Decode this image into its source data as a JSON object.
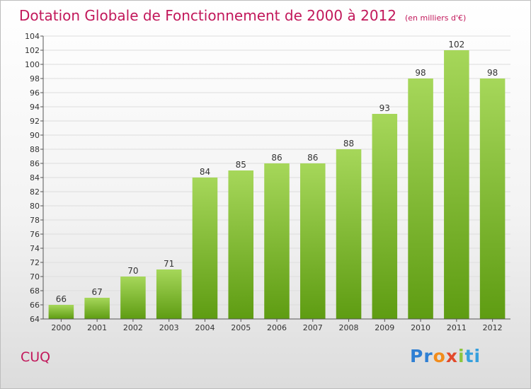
{
  "chart_data": {
    "type": "bar",
    "title": "Dotation Globale de Fonctionnement de 2000 à 2012",
    "subtitle": "(en milliers d'€)",
    "categories": [
      "2000",
      "2001",
      "2002",
      "2003",
      "2004",
      "2005",
      "2006",
      "2007",
      "2008",
      "2009",
      "2010",
      "2011",
      "2012"
    ],
    "values": [
      66,
      67,
      70,
      71,
      84,
      85,
      86,
      86,
      88,
      93,
      98,
      102,
      98
    ],
    "ylim": [
      64,
      104
    ],
    "yticks": [
      64,
      66,
      68,
      70,
      72,
      74,
      76,
      78,
      80,
      82,
      84,
      86,
      88,
      90,
      92,
      94,
      96,
      98,
      100,
      102,
      104
    ],
    "grid": true,
    "legend": "none",
    "colors": {
      "bar_light": "#a6d75a",
      "bar_dark": "#5e9c12",
      "title": "#c2185b",
      "grid": "#dddddd"
    }
  },
  "commune": "CUQ",
  "brand": {
    "letters": [
      "Pr",
      "o",
      "x",
      "i",
      "ti"
    ]
  }
}
